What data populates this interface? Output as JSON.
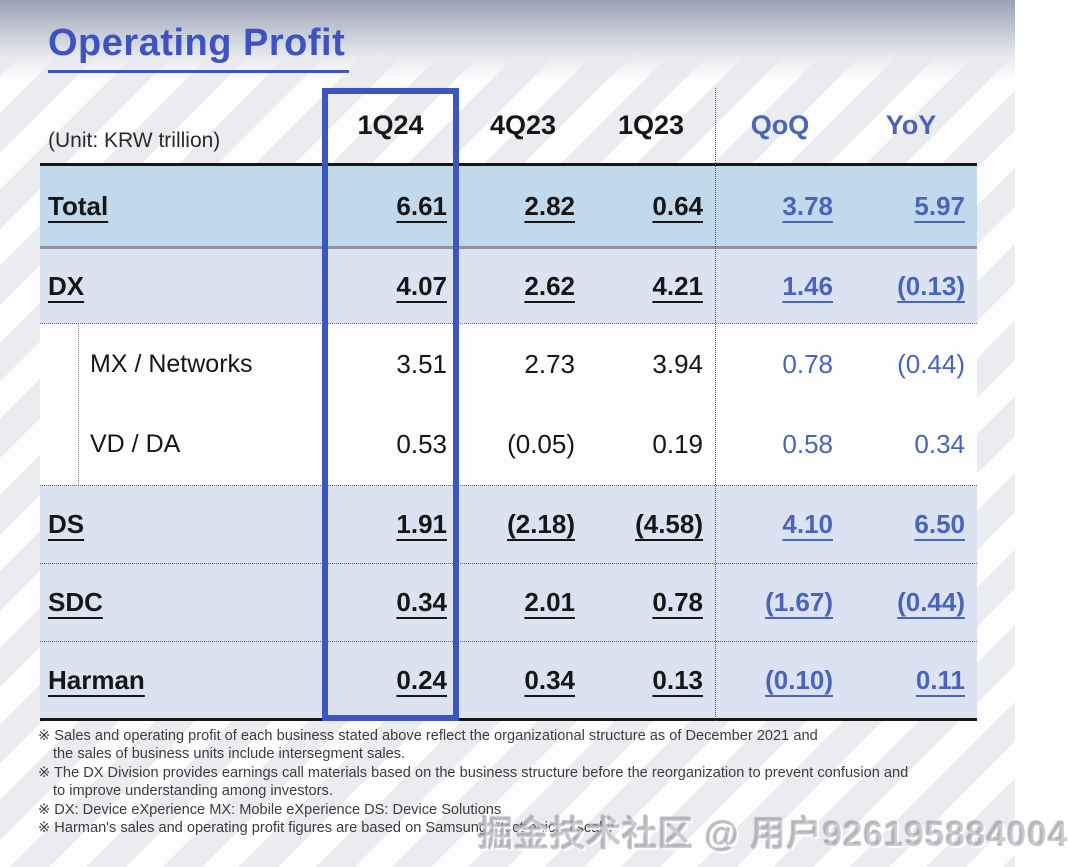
{
  "page": {
    "title": "Operating Profit",
    "unit_label": "(Unit: KRW trillion)",
    "watermark": "掘金技术社区 @ 用户926195884004"
  },
  "table": {
    "columns": [
      "1Q24",
      "4Q23",
      "1Q23",
      "QoQ",
      "YoY"
    ],
    "highlighted_column": "1Q24",
    "rows": [
      {
        "label": "Total",
        "level": "main",
        "underlined": true,
        "values": [
          "6.61",
          "2.82",
          "0.64",
          "3.78",
          "5.97"
        ]
      },
      {
        "label": "DX",
        "level": "main",
        "underlined": true,
        "values": [
          "4.07",
          "2.62",
          "4.21",
          "1.46",
          "(0.13)"
        ]
      },
      {
        "label": "MX / Networks",
        "level": "sub",
        "underlined": false,
        "values": [
          "3.51",
          "2.73",
          "3.94",
          "0.78",
          "(0.44)"
        ]
      },
      {
        "label": "VD / DA",
        "level": "sub",
        "underlined": false,
        "values": [
          "0.53",
          "(0.05)",
          "0.19",
          "0.58",
          "0.34"
        ]
      },
      {
        "label": "DS",
        "level": "main",
        "underlined": true,
        "values": [
          "1.91",
          "(2.18)",
          "(4.58)",
          "4.10",
          "6.50"
        ]
      },
      {
        "label": "SDC",
        "level": "main",
        "underlined": true,
        "values": [
          "0.34",
          "2.01",
          "0.78",
          "(1.67)",
          "(0.44)"
        ]
      },
      {
        "label": "Harman",
        "level": "main",
        "underlined": true,
        "values": [
          "0.24",
          "0.34",
          "0.13",
          "(0.10)",
          "0.11"
        ]
      }
    ]
  },
  "footnotes": [
    {
      "text": "※ Sales and operating profit of each business stated above reflect the organizational structure  as of December 2021 and",
      "indent": false
    },
    {
      "text": "the sales of business units include intersegment sales.",
      "indent": true
    },
    {
      "text": "※ The DX Division provides earnings call materials based on the business structure before the reorganization to prevent confusion and",
      "indent": false
    },
    {
      "text": "to improve understanding among investors.",
      "indent": true
    },
    {
      "text": "※ DX: Device eXperience MX: Mobile eXperience DS: Device Solutions",
      "indent": false
    },
    {
      "text": "※ Harman's sales and operating profit figures are based on Samsung Electronics' fiscal y",
      "indent": false
    }
  ],
  "colors": {
    "title_blue": "#3e53c1",
    "header_blue": "#3c4fb3",
    "value_blue": "#4a64ba",
    "total_row_bg": "#c2d8eb",
    "main_row_bg": "#dbe3f3",
    "highlight_border": "#3c55c0",
    "gray_divider": "#8e939c"
  }
}
